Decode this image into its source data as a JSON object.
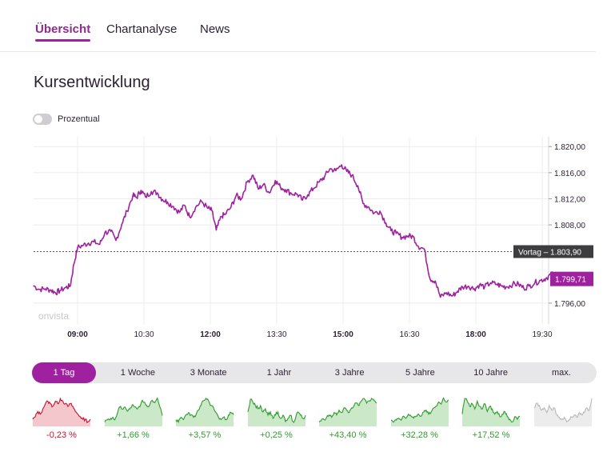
{
  "tabs": [
    {
      "label": "Übersicht",
      "active": true
    },
    {
      "label": "Chartanalyse",
      "active": false
    },
    {
      "label": "News",
      "active": false
    }
  ],
  "section_title": "Kursentwicklung",
  "toggle": {
    "label": "Prozentual",
    "on": false
  },
  "chart_data": {
    "type": "line",
    "watermark": "onvista",
    "x_ticks": [
      "09:00",
      "10:30",
      "12:00",
      "13:30",
      "15:00",
      "16:30",
      "18:00",
      "19:30"
    ],
    "x_ticks_bold": [
      true,
      false,
      true,
      false,
      true,
      false,
      true,
      false
    ],
    "y_ticks": [
      "1.820,00",
      "1.816,00",
      "1.812,00",
      "1.808,00",
      "1.796,00"
    ],
    "y_tick_values": [
      1820,
      1816,
      1812,
      1808,
      1796
    ],
    "ylim": [
      1792.8,
      1821.5
    ],
    "previous_close": {
      "label": "Vortag – 1.803,90",
      "value": 1803.9
    },
    "current": {
      "label": "1.799,71",
      "value": 1799.71
    },
    "color": "#a0219f",
    "series": [
      {
        "x_minutes_since_0800": [
          0,
          8,
          16,
          24,
          30,
          36,
          44,
          50,
          55,
          60,
          68,
          75,
          82,
          90,
          97,
          105,
          112,
          120,
          127,
          135,
          140,
          146,
          152,
          160,
          168,
          175,
          182,
          190,
          198,
          205,
          212,
          220,
          228,
          236,
          242,
          248,
          255,
          260,
          268,
          275,
          282,
          290,
          298,
          305,
          312,
          320,
          328,
          335,
          342,
          350,
          358,
          365,
          372,
          380,
          388,
          395,
          402,
          410,
          418,
          425,
          432,
          440,
          447,
          455,
          462,
          470,
          478,
          485,
          492,
          500,
          508,
          515,
          522,
          530,
          538,
          545,
          552,
          560,
          568,
          575,
          582,
          590,
          598,
          605,
          612,
          620,
          628,
          635,
          642,
          650,
          658,
          665,
          672,
          680,
          688,
          695,
          702,
          710,
          718,
          725
        ],
        "values": [
          1798.7,
          1798.1,
          1798.2,
          1798.0,
          1797.6,
          1797.9,
          1798.4,
          1798.6,
          1802.0,
          1804.5,
          1804.9,
          1805.2,
          1805.4,
          1805.0,
          1806.8,
          1807.0,
          1805.6,
          1808.1,
          1810.1,
          1812.5,
          1812.2,
          1813.3,
          1812.3,
          1813.1,
          1812.9,
          1811.9,
          1811.5,
          1810.8,
          1809.9,
          1811.0,
          1809.2,
          1810.7,
          1811.6,
          1810.6,
          1810.2,
          1807.2,
          1809.3,
          1809.6,
          1810.7,
          1812.5,
          1812.0,
          1814.6,
          1815.6,
          1813.5,
          1814.2,
          1812.9,
          1814.8,
          1813.8,
          1813.4,
          1812.8,
          1812.7,
          1811.8,
          1812.6,
          1813.6,
          1814.6,
          1815.4,
          1816.6,
          1816.3,
          1817.2,
          1816.2,
          1815.6,
          1814.0,
          1811.3,
          1810.7,
          1809.8,
          1810.1,
          1808.3,
          1807.1,
          1806.7,
          1806.1,
          1806.3,
          1806.2,
          1804.7,
          1804.3,
          1799.7,
          1799.4,
          1796.9,
          1797.6,
          1797.1,
          1797.8,
          1798.5,
          1798.6,
          1798.2,
          1798.8,
          1798.5,
          1799.1,
          1798.9,
          1798.6,
          1798.5,
          1798.9,
          1798.9,
          1798.3,
          1798.6,
          1799.1,
          1799.5,
          1799.8,
          1800.4,
          1800.3,
          1799.8,
          1799.71
        ]
      }
    ]
  },
  "ranges": [
    {
      "label": "1 Tag",
      "active": true
    },
    {
      "label": "1 Woche",
      "active": false
    },
    {
      "label": "3 Monate",
      "active": false
    },
    {
      "label": "1 Jahr",
      "active": false
    },
    {
      "label": "3 Jahre",
      "active": false
    },
    {
      "label": "5 Jahre",
      "active": false
    },
    {
      "label": "10 Jahre",
      "active": false
    },
    {
      "label": "max.",
      "active": false
    }
  ],
  "sparklines": [
    {
      "change": "-0,23 %",
      "color": "#c8102e",
      "fill": "#f4c7cc",
      "values": [
        3,
        4,
        6,
        5,
        7,
        9,
        10,
        9,
        8,
        10,
        9,
        11,
        10,
        9,
        8,
        9,
        8,
        6,
        5,
        4,
        3,
        3,
        2,
        3
      ]
    },
    {
      "change": "+1,66 %",
      "color": "#2e9c2e",
      "fill": "#cbe9c9",
      "values": [
        2,
        3,
        3,
        4,
        3,
        6,
        9,
        8,
        9,
        7,
        8,
        10,
        9,
        8,
        9,
        12,
        11,
        9,
        10,
        12,
        11,
        13,
        9,
        5
      ]
    },
    {
      "change": "+3,57 %",
      "color": "#2e9c2e",
      "fill": "#cbe9c9",
      "values": [
        3,
        2,
        4,
        3,
        5,
        6,
        5,
        4,
        5,
        7,
        9,
        11,
        12,
        11,
        9,
        8,
        6,
        4,
        3,
        4,
        3,
        5,
        6,
        5
      ]
    },
    {
      "change": "+0,25 %",
      "color": "#2e9c2e",
      "fill": "#cbe9c9",
      "values": [
        6,
        10,
        9,
        8,
        7,
        8,
        6,
        7,
        5,
        6,
        4,
        5,
        6,
        4,
        5,
        3,
        4,
        5,
        3,
        4,
        6,
        5,
        4,
        5
      ]
    },
    {
      "change": "+43,40 %",
      "color": "#2e9c2e",
      "fill": "#cbe9c9",
      "values": [
        2,
        3,
        3,
        4,
        5,
        4,
        6,
        5,
        7,
        6,
        8,
        7,
        6,
        8,
        9,
        10,
        9,
        11,
        12,
        10,
        11,
        12,
        11,
        10
      ]
    },
    {
      "change": "+32,28 %",
      "color": "#2e9c2e",
      "fill": "#cbe9c9",
      "values": [
        3,
        2,
        3,
        4,
        3,
        5,
        4,
        6,
        5,
        4,
        5,
        6,
        5,
        7,
        8,
        6,
        7,
        9,
        10,
        12,
        11,
        14,
        12,
        13
      ]
    },
    {
      "change": "+17,52 %",
      "color": "#2e9c2e",
      "fill": "#cbe9c9",
      "values": [
        6,
        12,
        11,
        9,
        10,
        8,
        11,
        9,
        8,
        10,
        7,
        9,
        8,
        6,
        7,
        5,
        6,
        7,
        5,
        4,
        3,
        5,
        4,
        5
      ]
    },
    {
      "change": "",
      "color": "#b8b8b8",
      "fill": "#ececec",
      "values": [
        8,
        10,
        9,
        7,
        8,
        6,
        9,
        7,
        8,
        5,
        4,
        3,
        4,
        2,
        3,
        4,
        5,
        4,
        6,
        5,
        6,
        8,
        7,
        12
      ]
    }
  ]
}
